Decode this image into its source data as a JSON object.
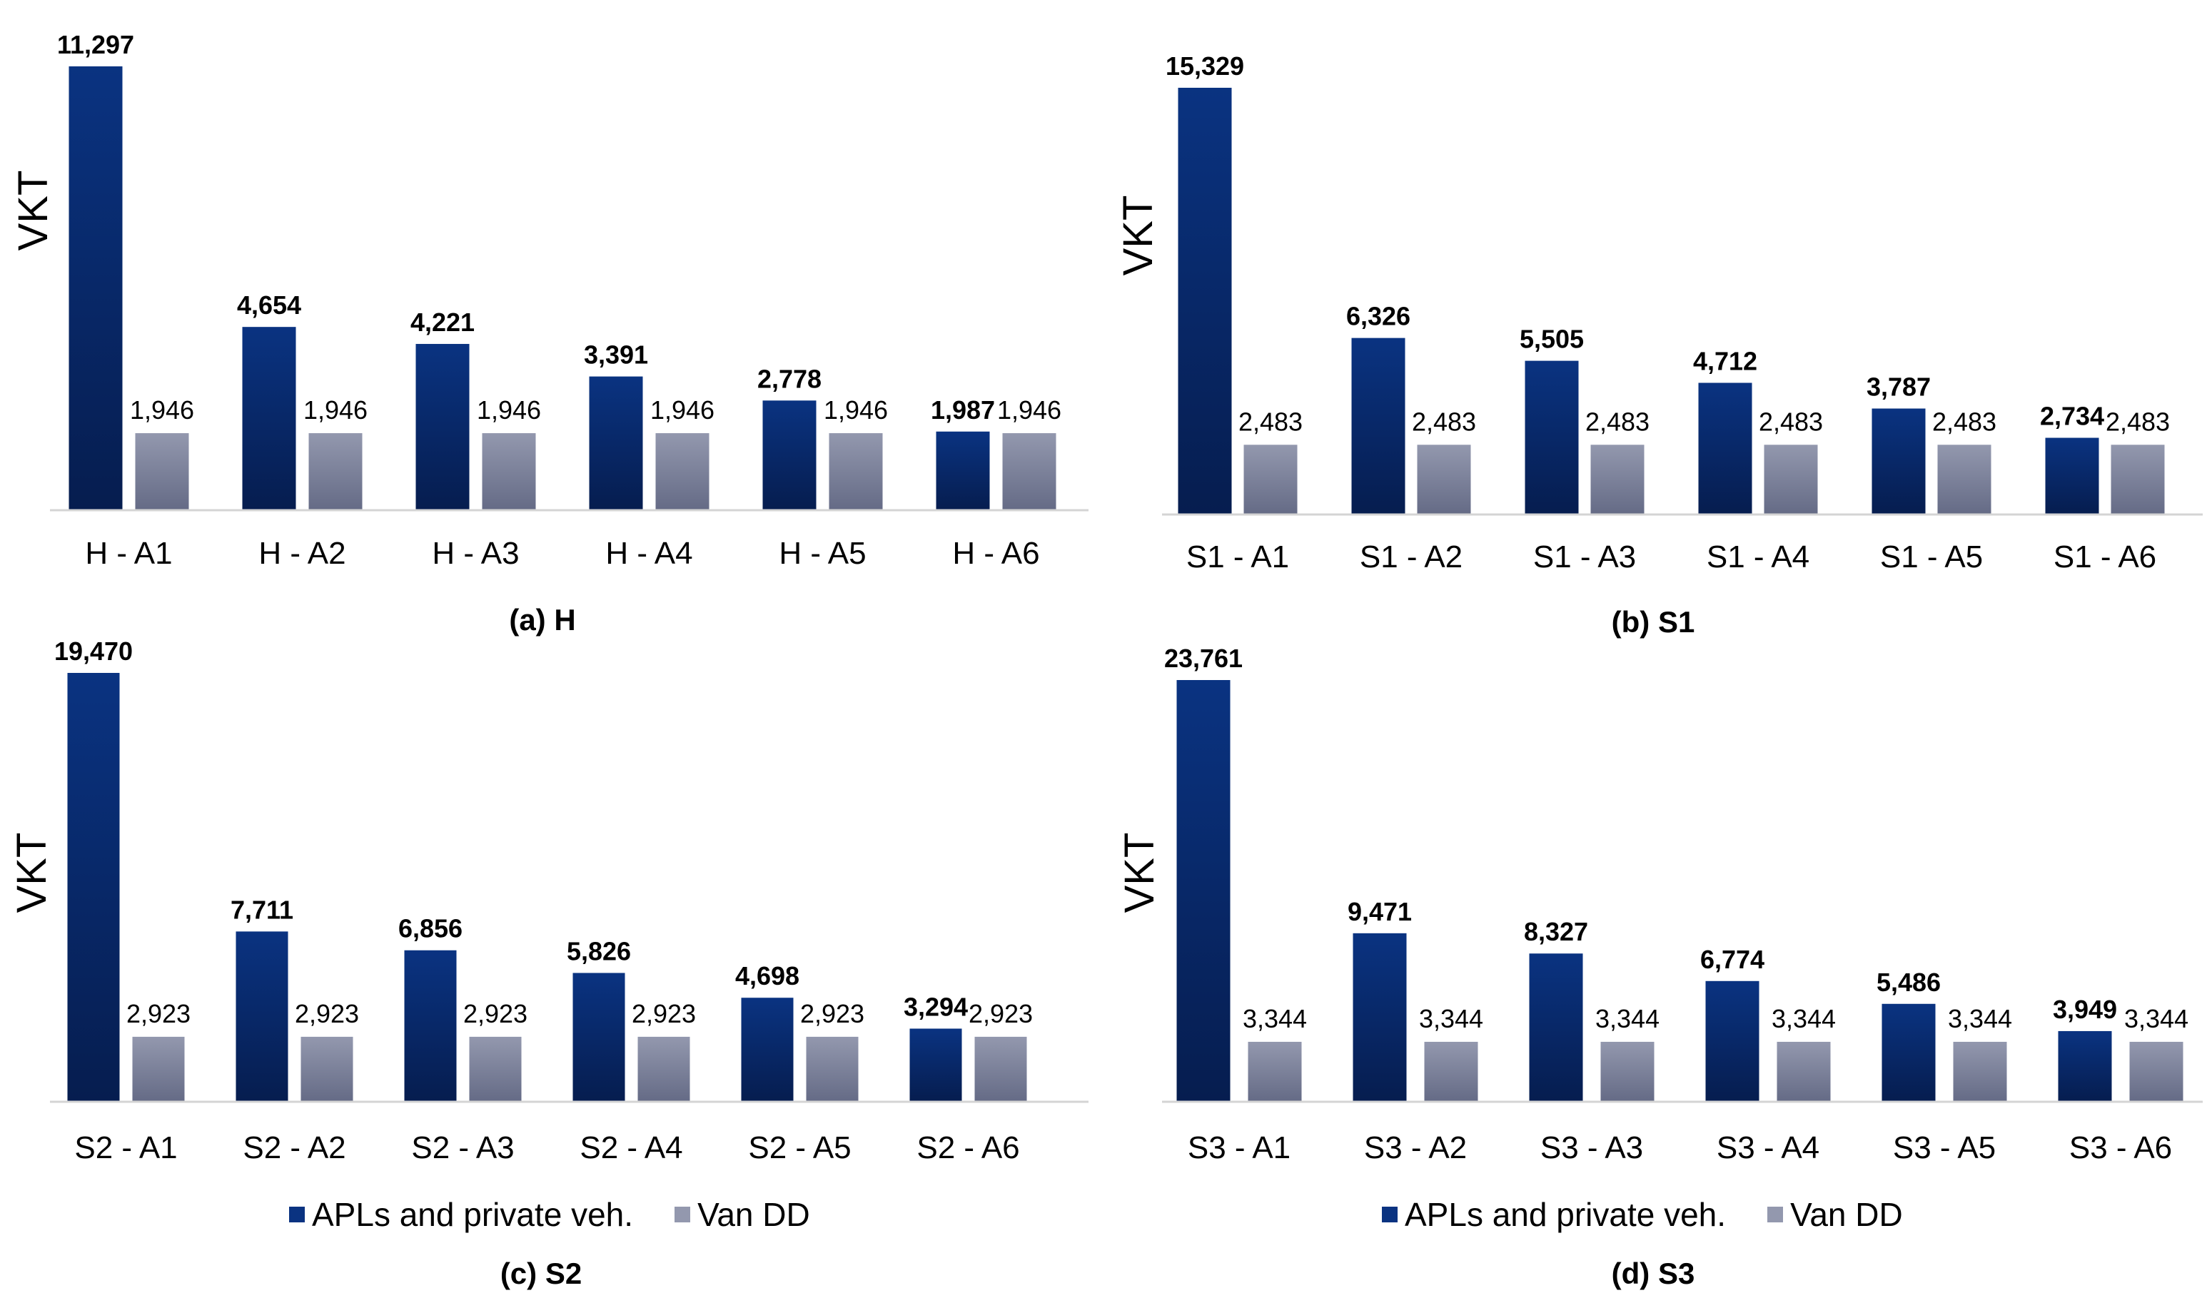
{
  "legend": {
    "series_apl": "APLs and private veh.",
    "series_van": "Van DD"
  },
  "colors": {
    "apl_top": "#0a3381",
    "apl_bottom": "#061d4f",
    "van_top": "#9398ae",
    "van_bottom": "#656b86",
    "axis": "#d4d4d4"
  },
  "chart_data": [
    {
      "type": "bar",
      "caption": "(a) H",
      "ylabel": "VKT",
      "ylim": [
        0,
        11297
      ],
      "categories": [
        "H - A1",
        "H - A2",
        "H - A3",
        "H - A4",
        "H - A5",
        "H - A6"
      ],
      "series": [
        {
          "name": "APLs and private veh.",
          "values": [
            11297,
            4654,
            4221,
            3391,
            2778,
            1987
          ],
          "labels": [
            "11,297",
            "4,654",
            "4,221",
            "3,391",
            "2,778",
            "1,987"
          ]
        },
        {
          "name": "Van DD",
          "values": [
            1946,
            1946,
            1946,
            1946,
            1946,
            1946
          ],
          "labels": [
            "1,946",
            "1,946",
            "1,946",
            "1,946",
            "1,946",
            "1,946"
          ]
        }
      ]
    },
    {
      "type": "bar",
      "caption": "(b) S1",
      "ylabel": "VKT",
      "ylim": [
        0,
        15329
      ],
      "categories": [
        "S1 - A1",
        "S1 - A2",
        "S1 - A3",
        "S1 - A4",
        "S1 - A5",
        "S1 - A6"
      ],
      "series": [
        {
          "name": "APLs and private veh.",
          "values": [
            15329,
            6326,
            5505,
            4712,
            3787,
            2734
          ],
          "labels": [
            "15,329",
            "6,326",
            "5,505",
            "4,712",
            "3,787",
            "2,734"
          ]
        },
        {
          "name": "Van DD",
          "values": [
            2483,
            2483,
            2483,
            2483,
            2483,
            2483
          ],
          "labels": [
            "2,483",
            "2,483",
            "2,483",
            "2,483",
            "2,483",
            "2,483"
          ]
        }
      ]
    },
    {
      "type": "bar",
      "caption": "(c) S2",
      "ylabel": "VKT",
      "ylim": [
        0,
        19470
      ],
      "categories": [
        "S2 - A1",
        "S2 - A2",
        "S2 - A3",
        "S2 - A4",
        "S2 - A5",
        "S2 - A6"
      ],
      "series": [
        {
          "name": "APLs and private veh.",
          "values": [
            19470,
            7711,
            6856,
            5826,
            4698,
            3294
          ],
          "labels": [
            "19,470",
            "7,711",
            "6,856",
            "5,826",
            "4,698",
            "3,294"
          ]
        },
        {
          "name": "Van DD",
          "values": [
            2923,
            2923,
            2923,
            2923,
            2923,
            2923
          ],
          "labels": [
            "2,923",
            "2,923",
            "2,923",
            "2,923",
            "2,923",
            "2,923"
          ]
        }
      ]
    },
    {
      "type": "bar",
      "caption": "(d) S3",
      "ylabel": "VKT",
      "ylim": [
        0,
        23761
      ],
      "categories": [
        "S3 - A1",
        "S3 - A2",
        "S3 - A3",
        "S3 - A4",
        "S3 - A5",
        "S3 - A6"
      ],
      "series": [
        {
          "name": "APLs and private veh.",
          "values": [
            23761,
            9471,
            8327,
            6774,
            5486,
            3949
          ],
          "labels": [
            "23,761",
            "9,471",
            "8,327",
            "6,774",
            "5,486",
            "3,949"
          ]
        },
        {
          "name": "Van DD",
          "values": [
            3344,
            3344,
            3344,
            3344,
            3344,
            3344
          ],
          "labels": [
            "3,344",
            "3,344",
            "3,344",
            "3,344",
            "3,344",
            "3,344"
          ]
        }
      ]
    }
  ]
}
